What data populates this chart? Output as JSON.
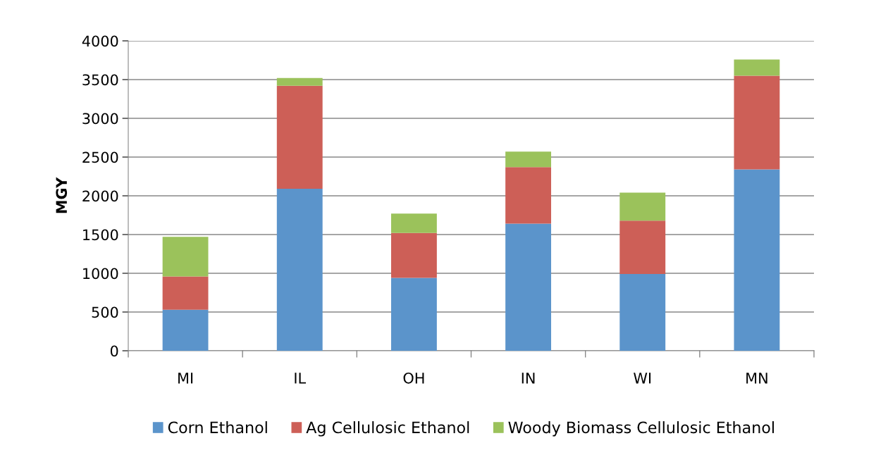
{
  "chart_data": {
    "type": "bar",
    "stacked": true,
    "ylabel": "MGY",
    "categories": [
      "MI",
      "IL",
      "OH",
      "IN",
      "WI",
      "MN"
    ],
    "series": [
      {
        "name": "Corn Ethanol",
        "color": "#5b94cb",
        "values": [
          530,
          2090,
          940,
          1640,
          990,
          2340
        ]
      },
      {
        "name": "Ag Cellulosic Ethanol",
        "color": "#cd5f57",
        "values": [
          430,
          1330,
          580,
          730,
          690,
          1210
        ]
      },
      {
        "name": "Woody Biomass Cellulosic Ethanol",
        "color": "#9bc25b",
        "values": [
          510,
          100,
          250,
          200,
          360,
          210
        ]
      }
    ],
    "ylim": [
      0,
      4000
    ],
    "yticks": [
      0,
      500,
      1000,
      1500,
      2000,
      2500,
      3000,
      3500,
      4000
    ],
    "grid": "y",
    "legend": "bottom"
  }
}
